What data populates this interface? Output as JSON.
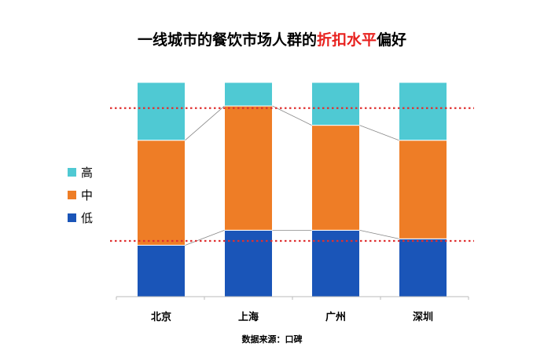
{
  "title": {
    "prefix": "一线城市的餐饮市场人群的",
    "highlight": "折扣水平",
    "suffix": "偏好"
  },
  "source": "数据来源：口碑",
  "colors": {
    "低": "#1a55b8",
    "中": "#ee7d26",
    "高": "#4fc9d3",
    "reference_line": "#e03030",
    "connector": "#888888",
    "axis": "#bbbbbb"
  },
  "legend": [
    "高",
    "中",
    "低"
  ],
  "chart_data": {
    "type": "bar",
    "stacked": true,
    "normalized": true,
    "categories": [
      "北京",
      "上海",
      "广州",
      "深圳"
    ],
    "series": [
      {
        "name": "低",
        "values": [
          24,
          31,
          31,
          27
        ]
      },
      {
        "name": "中",
        "values": [
          49,
          58,
          49,
          46
        ]
      },
      {
        "name": "高",
        "values": [
          27,
          11,
          20,
          27
        ]
      }
    ],
    "ylim": [
      0,
      100
    ],
    "reference_lines": [
      26,
      88
    ],
    "legend_position": "left"
  }
}
